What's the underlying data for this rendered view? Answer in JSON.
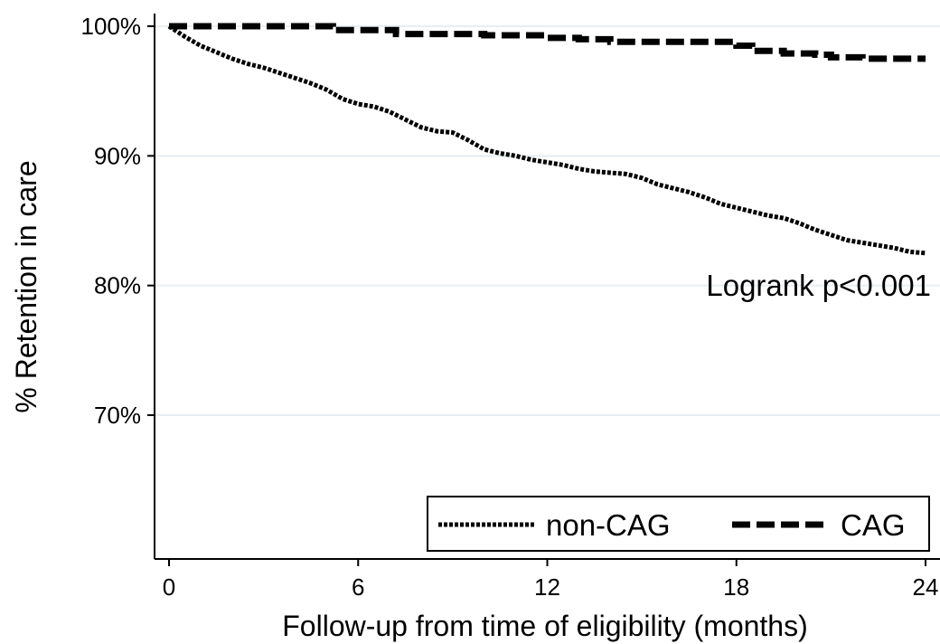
{
  "chart_data": {
    "type": "line",
    "xlabel": "Follow-up from time of eligibility (months)",
    "ylabel": "% Retention in care",
    "xlim": [
      0,
      24
    ],
    "ylim": [
      60,
      100
    ],
    "x_ticks": [
      "0",
      "6",
      "12",
      "18",
      "24"
    ],
    "y_ticks": [
      "100%",
      "90%",
      "80%",
      "70%"
    ],
    "grid": "horizontal",
    "legend_position": "bottom-right",
    "annotation": "Logrank p<0.001",
    "series": [
      {
        "name": "non-CAG",
        "style": "dotted-ticked",
        "color": "#000000",
        "points": [
          [
            0,
            100
          ],
          [
            0.5,
            99.2
          ],
          [
            1,
            98.5
          ],
          [
            1.5,
            98.0
          ],
          [
            2,
            97.5
          ],
          [
            2.5,
            97.1
          ],
          [
            3,
            96.8
          ],
          [
            3.5,
            96.4
          ],
          [
            4,
            96.0
          ],
          [
            4.5,
            95.6
          ],
          [
            5,
            95.1
          ],
          [
            5.5,
            94.4
          ],
          [
            6,
            94.0
          ],
          [
            6.5,
            93.8
          ],
          [
            7,
            93.4
          ],
          [
            7.5,
            92.8
          ],
          [
            8,
            92.2
          ],
          [
            8.5,
            91.9
          ],
          [
            9,
            91.8
          ],
          [
            9.5,
            91.2
          ],
          [
            10,
            90.5
          ],
          [
            10.5,
            90.2
          ],
          [
            11,
            90.0
          ],
          [
            11.5,
            89.7
          ],
          [
            12,
            89.5
          ],
          [
            12.5,
            89.3
          ],
          [
            13,
            89.0
          ],
          [
            13.5,
            88.8
          ],
          [
            14,
            88.7
          ],
          [
            14.5,
            88.6
          ],
          [
            15,
            88.3
          ],
          [
            15.5,
            87.8
          ],
          [
            16,
            87.5
          ],
          [
            16.5,
            87.2
          ],
          [
            17,
            86.8
          ],
          [
            17.5,
            86.3
          ],
          [
            18,
            86.0
          ],
          [
            18.5,
            85.7
          ],
          [
            19,
            85.4
          ],
          [
            19.5,
            85.2
          ],
          [
            20,
            84.8
          ],
          [
            20.5,
            84.3
          ],
          [
            21,
            83.9
          ],
          [
            21.5,
            83.5
          ],
          [
            22,
            83.3
          ],
          [
            22.5,
            83.1
          ],
          [
            23,
            82.9
          ],
          [
            23.5,
            82.6
          ],
          [
            24,
            82.5
          ]
        ]
      },
      {
        "name": "CAG",
        "style": "dashed",
        "color": "#000000",
        "points": [
          [
            0,
            100
          ],
          [
            5,
            100
          ],
          [
            5.2,
            99.7
          ],
          [
            7,
            99.7
          ],
          [
            7.2,
            99.4
          ],
          [
            9.5,
            99.4
          ],
          [
            10,
            99.3
          ],
          [
            12,
            99.1
          ],
          [
            13,
            99.0
          ],
          [
            14,
            98.8
          ],
          [
            17.5,
            98.8
          ],
          [
            18,
            98.5
          ],
          [
            18.5,
            98.1
          ],
          [
            19.5,
            97.9
          ],
          [
            20.5,
            97.8
          ],
          [
            21,
            97.6
          ],
          [
            22,
            97.5
          ],
          [
            24,
            97.5
          ]
        ]
      }
    ]
  }
}
